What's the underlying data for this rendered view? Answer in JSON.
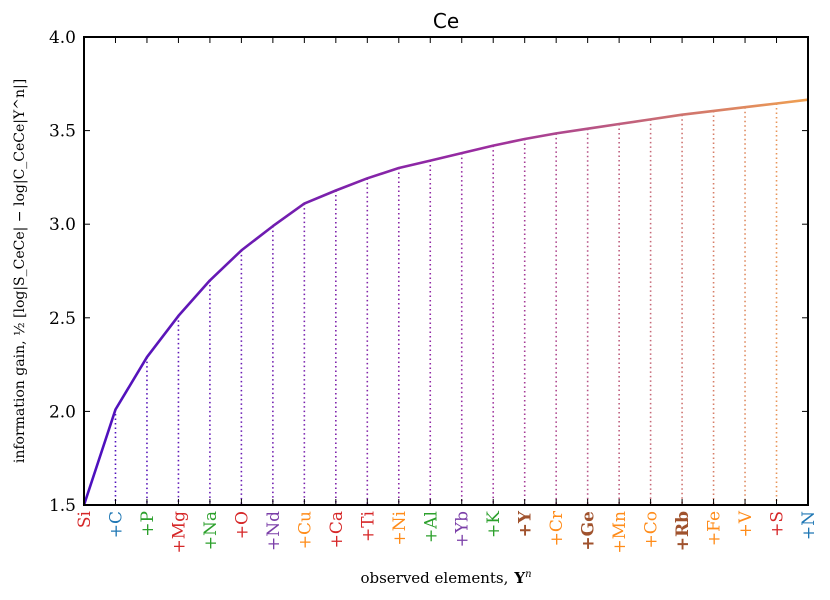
{
  "chart_data": {
    "type": "line",
    "title": "Ce",
    "xlabel_text": "observed elements,",
    "xlabel_symbol": "Y",
    "xlabel_superscript": "n",
    "ylabel": "information gain, ½ [log|S_CeCe| − log|C_CeCe|Y^n|]",
    "ylim": [
      1.5,
      4.0
    ],
    "yticks": [
      "1.5",
      "2.0",
      "2.5",
      "3.0",
      "3.5",
      "4.0"
    ],
    "categories": [
      "Si",
      "+C",
      "+P",
      "+Mg",
      "+Na",
      "+O",
      "+Nd",
      "+Cu",
      "+Ca",
      "+Ti",
      "+Ni",
      "+Al",
      "+Yb",
      "+K",
      "+Y",
      "+Cr",
      "+Ge",
      "+Mn",
      "+Co",
      "+Rb",
      "+Fe",
      "+V",
      "+S",
      "+N"
    ],
    "category_colors": [
      "#d62728",
      "#1f77b4",
      "#2ca02c",
      "#d62728",
      "#2ca02c",
      "#d62728",
      "#7b3fa8",
      "#ff8c1a",
      "#d62728",
      "#d62728",
      "#ff8c1a",
      "#2ca02c",
      "#7b3fa8",
      "#2ca02c",
      "#a0522d",
      "#ff8c1a",
      "#a0522d",
      "#ff8c1a",
      "#ff8c1a",
      "#a0522d",
      "#ff8c1a",
      "#ff8c1a",
      "#d62728",
      "#1f77b4"
    ],
    "category_bold": [
      false,
      false,
      false,
      false,
      false,
      false,
      false,
      false,
      false,
      false,
      false,
      false,
      false,
      false,
      true,
      false,
      true,
      false,
      false,
      true,
      false,
      false,
      false,
      false
    ],
    "values": [
      1.5,
      2.01,
      2.29,
      2.51,
      2.7,
      2.86,
      2.99,
      3.11,
      3.18,
      3.245,
      3.3,
      3.34,
      3.38,
      3.42,
      3.455,
      3.485,
      3.51,
      3.535,
      3.56,
      3.585,
      3.605,
      3.625,
      3.645,
      3.665
    ],
    "line_color_start": "#4b0fbf",
    "line_color_mid": "#9a2ca0",
    "line_color_end": "#f0a050",
    "grid": false
  }
}
